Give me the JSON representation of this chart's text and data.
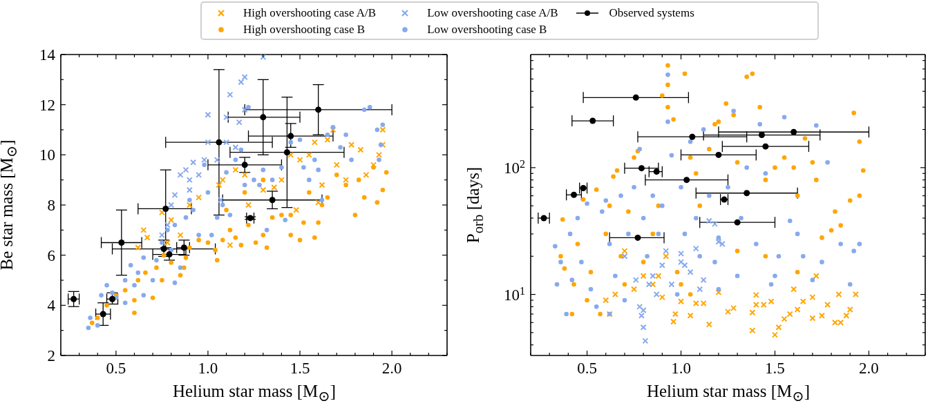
{
  "chart_data": [
    {
      "type": "scatter",
      "xlabel": "Helium star mass [M$_{⊙}$]",
      "ylabel": "Be star mass [M$_{⊙}$]",
      "legend": "top",
      "xlim": [
        0.2,
        2.3
      ],
      "ylim": [
        2,
        14
      ],
      "xticks": [
        {
          "value": 0.2,
          "label": null
        },
        {
          "value": 0.3,
          "label": null
        },
        {
          "value": 0.4,
          "label": null
        },
        {
          "value": 0.5,
          "label": "0.5"
        },
        {
          "value": 0.6,
          "label": null
        },
        {
          "value": 0.7,
          "label": null
        },
        {
          "value": 0.8,
          "label": null
        },
        {
          "value": 0.9,
          "label": null
        },
        {
          "value": 1,
          "label": "1.0"
        },
        {
          "value": 1.1,
          "label": null
        },
        {
          "value": 1.2,
          "label": null
        },
        {
          "value": 1.3,
          "label": null
        },
        {
          "value": 1.4,
          "label": null
        },
        {
          "value": 1.5,
          "label": "1.5"
        },
        {
          "value": 1.6,
          "label": null
        },
        {
          "value": 1.7,
          "label": null
        },
        {
          "value": 1.8,
          "label": null
        },
        {
          "value": 1.9,
          "label": null
        },
        {
          "value": 2,
          "label": "2.0"
        },
        {
          "value": 2.1,
          "label": null
        },
        {
          "value": 2.2,
          "label": null
        },
        {
          "value": 2.3,
          "label": null
        }
      ],
      "yticks": [
        2,
        {
          "value": 3,
          "label": null
        },
        4,
        {
          "value": 5,
          "label": null
        },
        6,
        {
          "value": 7,
          "label": null
        },
        8,
        {
          "value": 9,
          "label": null
        },
        10,
        {
          "value": 11,
          "label": null
        },
        12,
        {
          "value": 13,
          "label": null
        },
        14
      ],
      "series": [
        {
          "name": "High overshooting case A/B",
          "color": "#ffa500",
          "marker": "cross",
          "x": [
            0.62,
            0.65,
            0.67,
            0.75,
            0.8,
            0.9,
            0.95,
            1.06,
            1.08,
            1.15,
            1.2,
            1.22,
            1.3,
            1.4,
            1.45,
            1.5,
            1.55,
            1.58,
            1.62,
            1.65,
            1.68,
            1.7,
            1.75,
            1.78,
            1.83,
            1.86,
            1.9,
            1.93,
            1.95,
            1.95,
            1.12,
            0.78,
            1.6,
            1.48,
            1.36,
            0.85
          ],
          "values": [
            6.3,
            7.0,
            6.7,
            7.7,
            7.4,
            8.0,
            8.3,
            8.8,
            9.0,
            9.4,
            9.2,
            8.0,
            8.6,
            9.0,
            10.0,
            9.8,
            10.0,
            10.5,
            8.8,
            10.6,
            11.0,
            9.6,
            9.0,
            10.4,
            10.2,
            9.2,
            9.6,
            10.0,
            11.0,
            10.4,
            6.4,
            6.5,
            8.1,
            7.8,
            8.7,
            6.8
          ]
        },
        {
          "name": "High overshooting case B",
          "color": "#ffa500",
          "marker": "circle",
          "x": [
            0.37,
            0.4,
            0.45,
            0.5,
            0.55,
            0.6,
            0.6,
            0.62,
            0.66,
            0.7,
            0.72,
            0.75,
            0.8,
            0.85,
            0.87,
            0.9,
            0.95,
            1.0,
            1.04,
            1.05,
            1.08,
            1.12,
            1.15,
            1.18,
            1.22,
            1.26,
            1.3,
            1.32,
            1.35,
            1.4,
            1.45,
            1.45,
            1.5,
            1.52,
            1.55,
            1.58,
            1.6,
            1.62,
            1.65,
            1.7,
            1.75,
            1.8,
            1.82,
            1.85,
            1.9,
            1.92,
            1.95,
            1.97,
            1.3,
            1.2,
            0.88,
            0.76,
            1.1
          ],
          "values": [
            3.3,
            3.5,
            4.0,
            4.4,
            4.6,
            4.2,
            3.7,
            5.0,
            5.3,
            4.3,
            5.5,
            5.0,
            5.7,
            5.2,
            5.5,
            6.3,
            6.6,
            6.5,
            6.2,
            5.8,
            6.6,
            7.0,
            6.7,
            6.4,
            7.2,
            6.5,
            6.8,
            6.3,
            7.5,
            7.6,
            7.6,
            6.8,
            6.6,
            7.3,
            8.5,
            6.7,
            7.3,
            8.0,
            8.3,
            9.2,
            8.8,
            7.6,
            9.0,
            8.3,
            9.5,
            8.1,
            8.6,
            9.3,
            9.0,
            8.5,
            5.9,
            6.0,
            7.8
          ]
        },
        {
          "name": "Low overshooting case A/B",
          "color": "#87a9ee",
          "marker": "cross",
          "x": [
            0.8,
            0.82,
            0.85,
            0.88,
            0.9,
            0.92,
            0.95,
            1.0,
            0.98,
            1.0,
            1.05,
            1.1,
            1.12,
            1.15,
            1.18,
            1.2,
            1.3,
            1.2,
            1.17,
            1.07,
            0.78,
            0.75,
            0.9,
            1.1
          ],
          "values": [
            8.0,
            8.4,
            9.2,
            9.4,
            9.0,
            9.7,
            9.2,
            11.6,
            9.8,
            10.5,
            9.8,
            10.5,
            12.4,
            10.3,
            12.9,
            13.1,
            13.9,
            11.8,
            11.3,
            8.2,
            7.2,
            6.8,
            8.6,
            11.5
          ]
        },
        {
          "name": "Low overshooting case B",
          "color": "#87a9ee",
          "marker": "circle",
          "x": [
            0.35,
            0.36,
            0.4,
            0.42,
            0.45,
            0.48,
            0.5,
            0.55,
            0.58,
            0.6,
            0.62,
            0.65,
            0.7,
            0.72,
            0.75,
            0.78,
            0.8,
            0.82,
            0.85,
            0.88,
            0.9,
            0.92,
            0.95,
            0.98,
            1.0,
            1.02,
            1.05,
            1.08,
            1.1,
            1.12,
            1.15,
            1.18,
            1.2,
            1.22,
            1.25,
            1.28,
            1.3,
            1.32,
            1.35,
            1.4,
            1.42,
            1.45,
            1.5,
            1.52,
            1.55,
            1.58,
            1.6,
            1.62,
            1.65,
            1.68,
            1.72,
            1.75,
            1.78,
            1.85,
            1.88,
            1.92,
            1.95,
            1.94,
            1.93,
            0.65,
            0.55,
            0.82
          ],
          "values": [
            3.1,
            3.5,
            3.2,
            4.4,
            4.8,
            4.5,
            4.3,
            5.0,
            5.6,
            4.8,
            5.3,
            5.9,
            5.0,
            5.8,
            6.5,
            7.0,
            6.2,
            7.2,
            5.5,
            7.5,
            8.2,
            7.8,
            6.8,
            9.6,
            8.5,
            6.8,
            7.5,
            8.0,
            9.3,
            7.6,
            9.8,
            10.2,
            8.8,
            11.9,
            9.0,
            8.8,
            9.4,
            7.0,
            9.0,
            9.5,
            7.4,
            10.5,
            10.6,
            9.5,
            9.0,
            9.8,
            9.4,
            8.2,
            10.8,
            11.1,
            10.3,
            10.8,
            9.8,
            11.8,
            11.9,
            11.0,
            11.2,
            10.4,
            9.8,
            4.4,
            4.1,
            4.9
          ]
        },
        {
          "name": "Observed systems",
          "color": "#000000",
          "marker": "circle",
          "x": [
            0.27,
            0.43,
            0.48,
            0.53,
            0.77,
            0.76,
            0.79,
            0.87,
            1.06,
            1.2,
            1.23,
            1.3,
            1.35,
            1.43,
            1.45,
            1.6
          ],
          "values": [
            4.25,
            3.65,
            4.25,
            6.5,
            7.85,
            6.25,
            6.03,
            6.3,
            10.5,
            9.6,
            7.48,
            11.5,
            8.2,
            10.1,
            10.75,
            11.8
          ],
          "xerrors": [
            [
              0.24,
              0.3
            ],
            [
              0.39,
              0.47
            ],
            [
              0.45,
              0.51
            ],
            [
              0.42,
              0.64
            ],
            [
              0.62,
              0.91
            ],
            [
              0.48,
              1.04
            ],
            [
              0.7,
              0.88
            ],
            [
              0.83,
              0.9
            ],
            [
              0.77,
              1.35
            ],
            [
              1.0,
              1.4
            ],
            [
              1.21,
              1.25
            ],
            [
              1.11,
              1.5
            ],
            [
              1.08,
              1.62
            ],
            [
              1.12,
              1.74
            ],
            [
              1.22,
              1.68
            ],
            [
              1.2,
              2.0
            ]
          ],
          "errors": [
            [
              3.95,
              4.55
            ],
            [
              3.2,
              4.1
            ],
            [
              4.05,
              4.5
            ],
            [
              5.2,
              7.8
            ],
            [
              6.3,
              9.4
            ],
            [
              5.95,
              6.6
            ],
            [
              5.8,
              6.25
            ],
            [
              6.0,
              6.6
            ],
            [
              7.6,
              13.4
            ],
            [
              9.3,
              9.9
            ],
            [
              7.43,
              7.53
            ],
            [
              10.0,
              13.0
            ],
            [
              7.85,
              8.55
            ],
            [
              7.9,
              12.3
            ],
            [
              10.3,
              11.25
            ],
            [
              10.8,
              12.8
            ]
          ]
        }
      ]
    },
    {
      "type": "scatter",
      "xlabel": "Helium star mass [M$_{⊙}$]",
      "ylabel": "P$_{orb}$ [days]",
      "log": "y",
      "xlim": [
        0.2,
        2.3
      ],
      "ylim": [
        3.3,
        780
      ],
      "xticks": [
        {
          "value": 0.2,
          "label": null
        },
        {
          "value": 0.3,
          "label": null
        },
        {
          "value": 0.4,
          "label": null
        },
        {
          "value": 0.5,
          "label": "0.5"
        },
        {
          "value": 0.6,
          "label": null
        },
        {
          "value": 0.7,
          "label": null
        },
        {
          "value": 0.8,
          "label": null
        },
        {
          "value": 0.9,
          "label": null
        },
        {
          "value": 1,
          "label": "1.0"
        },
        {
          "value": 1.1,
          "label": null
        },
        {
          "value": 1.2,
          "label": null
        },
        {
          "value": 1.3,
          "label": null
        },
        {
          "value": 1.4,
          "label": null
        },
        {
          "value": 1.5,
          "label": "1.5"
        },
        {
          "value": 1.6,
          "label": null
        },
        {
          "value": 1.7,
          "label": null
        },
        {
          "value": 1.8,
          "label": null
        },
        {
          "value": 1.9,
          "label": null
        },
        {
          "value": 2,
          "label": "2.0"
        },
        {
          "value": 2.1,
          "label": null
        },
        {
          "value": 2.2,
          "label": null
        },
        {
          "value": 2.3,
          "label": null
        }
      ],
      "yticks": [
        {
          "value": 4,
          "label": null
        },
        {
          "value": 5,
          "label": null
        },
        {
          "value": 6,
          "label": null
        },
        {
          "value": 7,
          "label": null
        },
        {
          "value": 8,
          "label": null
        },
        {
          "value": 9,
          "label": null
        },
        {
          "value": 10,
          "label": "10$^{1}$"
        },
        {
          "value": 20,
          "label": null
        },
        {
          "value": 30,
          "label": null
        },
        {
          "value": 40,
          "label": null
        },
        {
          "value": 50,
          "label": null
        },
        {
          "value": 60,
          "label": null
        },
        {
          "value": 70,
          "label": null
        },
        {
          "value": 80,
          "label": null
        },
        {
          "value": 90,
          "label": null
        },
        {
          "value": 100,
          "label": "10$^{2}$"
        },
        {
          "value": 200,
          "label": null
        },
        {
          "value": 300,
          "label": null
        },
        {
          "value": 400,
          "label": null
        },
        {
          "value": 500,
          "label": null
        },
        {
          "value": 600,
          "label": null
        },
        {
          "value": 700,
          "label": null
        }
      ],
      "series": [
        {
          "color": "#ffa500",
          "marker": "cross",
          "x": [
            0.62,
            0.65,
            0.7,
            0.75,
            0.8,
            0.85,
            0.9,
            0.92,
            0.96,
            0.97,
            1.0,
            1.05,
            1.08,
            1.12,
            1.15,
            1.2,
            1.25,
            1.28,
            1.38,
            1.38,
            1.4,
            1.44,
            1.48,
            1.5,
            1.52,
            1.55,
            1.58,
            1.6,
            1.62,
            1.65,
            1.7,
            1.72,
            1.75,
            1.78,
            1.82,
            1.85,
            1.88,
            1.9,
            1.93,
            1.84,
            1.7,
            1.4,
            0.88,
            0.6
          ],
          "values": [
            7,
            10,
            22,
            11,
            14,
            12,
            9.5,
            20,
            6.1,
            7,
            8.8,
            6.8,
            8.5,
            8.5,
            5.8,
            10.4,
            7.3,
            7.8,
            7.2,
            5.2,
            8.3,
            8.3,
            8.8,
            4.8,
            5.5,
            6.4,
            7,
            11,
            7.6,
            8.8,
            6.5,
            14,
            6.8,
            8.3,
            6,
            6,
            6.8,
            7.6,
            10,
            10,
            9.5,
            9.9,
            14,
            9
          ]
        },
        {
          "color": "#ffa500",
          "marker": "circle",
          "x": [
            0.37,
            0.36,
            0.38,
            0.42,
            0.43,
            0.45,
            0.48,
            0.5,
            0.52,
            0.55,
            0.57,
            0.6,
            0.62,
            0.64,
            0.66,
            0.68,
            0.7,
            0.72,
            0.75,
            0.77,
            0.8,
            0.85,
            0.88,
            0.9,
            0.93,
            0.93,
            0.93,
            0.96,
            0.98,
            1.0,
            1.02,
            1.05,
            1.08,
            1.1,
            1.15,
            1.18,
            1.2,
            1.24,
            1.28,
            1.3,
            1.35,
            1.38,
            1.42,
            1.45,
            1.5,
            1.55,
            1.6,
            1.62,
            1.66,
            1.7,
            1.72,
            1.75,
            1.8,
            1.82,
            1.85,
            1.9,
            1.92,
            1.95,
            1.97,
            1.95,
            1.3,
            1.62,
            1.45,
            1.05
          ],
          "values": [
            39,
            20,
            16,
            7,
            12,
            25,
            56,
            9,
            15,
            67,
            7,
            30,
            50,
            85,
            95,
            20,
            12,
            45,
            120,
            135,
            18,
            30,
            50,
            370,
            640,
            450,
            300,
            240,
            15,
            12,
            550,
            120,
            90,
            50,
            140,
            220,
            230,
            320,
            260,
            110,
            520,
            550,
            300,
            80,
            100,
            120,
            100,
            60,
            170,
            110,
            80,
            28,
            32,
            45,
            35,
            55,
            270,
            160,
            95,
            60,
            22,
            15,
            20,
            10
          ]
        },
        {
          "color": "#87a9ee",
          "marker": "cross",
          "x": [
            0.78,
            0.79,
            0.8,
            0.81,
            0.8,
            0.83,
            0.85,
            0.87,
            0.9,
            0.92,
            0.95,
            1.0,
            1.02,
            1.05,
            1.08,
            1.1,
            1.12,
            1.15,
            1.18,
            1.2,
            1.22,
            1.0,
            0.76,
            0.7
          ],
          "values": [
            8,
            6.8,
            5.5,
            4.3,
            7.5,
            12,
            14,
            10,
            17,
            22,
            12,
            21,
            17,
            15,
            23,
            11,
            13,
            38,
            36,
            26,
            25,
            18,
            13,
            20
          ]
        },
        {
          "color": "#87a9ee",
          "marker": "circle",
          "x": [
            0.33,
            0.34,
            0.36,
            0.39,
            0.41,
            0.42,
            0.45,
            0.47,
            0.5,
            0.52,
            0.55,
            0.58,
            0.6,
            0.62,
            0.65,
            0.68,
            0.7,
            0.72,
            0.75,
            0.78,
            0.8,
            0.82,
            0.85,
            0.88,
            0.9,
            0.93,
            0.93,
            0.95,
            0.98,
            1.0,
            1.02,
            1.05,
            1.08,
            1.1,
            1.12,
            1.15,
            1.18,
            1.2,
            1.25,
            1.28,
            1.3,
            1.32,
            1.35,
            1.4,
            1.42,
            1.45,
            1.5,
            1.52,
            1.55,
            1.58,
            1.62,
            1.65,
            1.7,
            1.72,
            1.75,
            1.78,
            1.85,
            1.9,
            1.92,
            1.95,
            1.48,
            1.2,
            0.62
          ],
          "values": [
            24,
            12,
            18,
            7,
            30,
            13,
            40,
            18,
            52,
            11,
            8,
            45,
            55,
            25,
            14,
            60,
            9,
            30,
            70,
            140,
            40,
            20,
            60,
            30,
            50,
            540,
            230,
            125,
            10,
            70,
            30,
            160,
            40,
            20,
            200,
            60,
            18,
            28,
            70,
            280,
            14,
            40,
            100,
            25,
            220,
            90,
            14,
            20,
            250,
            38,
            30,
            20,
            13,
            215,
            18,
            110,
            25,
            12,
            22,
            25,
            12,
            11,
            7
          ]
        },
        {
          "color": "#000000",
          "marker": "circle",
          "x": [
            0.27,
            0.43,
            0.48,
            0.53,
            0.76,
            0.79,
            0.87,
            0.77,
            1.03,
            1.06,
            1.2,
            1.23,
            1.3,
            1.35,
            1.43,
            1.45,
            1.6
          ],
          "values": [
            40,
            61,
            69,
            234,
            357,
            99,
            93,
            28,
            80,
            175,
            126,
            56,
            37,
            63,
            181,
            147,
            191
          ],
          "xerrors": [
            [
              0.24,
              0.3
            ],
            [
              0.39,
              0.47
            ],
            [
              0.46,
              0.5
            ],
            [
              0.42,
              0.64
            ],
            [
              0.48,
              1.04
            ],
            [
              0.7,
              0.88
            ],
            [
              0.83,
              0.9
            ],
            [
              0.62,
              0.91
            ],
            [
              0.81,
              1.25
            ],
            [
              0.77,
              1.35
            ],
            [
              1.0,
              1.4
            ],
            [
              1.21,
              1.25
            ],
            [
              1.1,
              1.5
            ],
            [
              1.08,
              1.62
            ],
            [
              1.12,
              1.74
            ],
            [
              1.22,
              1.68
            ],
            [
              1.2,
              2.0
            ]
          ]
        }
      ]
    }
  ]
}
